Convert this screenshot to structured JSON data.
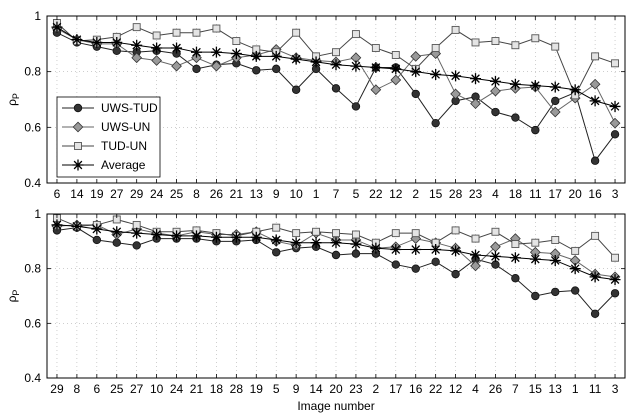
{
  "chart_data": [
    {
      "type": "line",
      "ylabel": "ρP",
      "xlabel": "",
      "ylim": [
        0.4,
        1.0
      ],
      "yticks": [
        "0.4",
        "0.6",
        "0.8",
        "1"
      ],
      "grid": true,
      "legend_position": "bottom-left",
      "categories": [
        "6",
        "14",
        "19",
        "27",
        "29",
        "24",
        "25",
        "8",
        "26",
        "21",
        "13",
        "9",
        "10",
        "1",
        "7",
        "5",
        "22",
        "12",
        "2",
        "15",
        "28",
        "23",
        "4",
        "18",
        "11",
        "17",
        "20",
        "16",
        "3"
      ],
      "series": [
        {
          "name": "UWS-TUD",
          "marker": "circle",
          "values": [
            0.94,
            0.905,
            0.89,
            0.875,
            0.87,
            0.875,
            0.865,
            0.81,
            0.825,
            0.83,
            0.805,
            0.81,
            0.735,
            0.81,
            0.74,
            0.675,
            0.815,
            0.815,
            0.72,
            0.615,
            0.695,
            0.71,
            0.655,
            0.635,
            0.59,
            0.695,
            0.725,
            0.48,
            0.575
          ]
        },
        {
          "name": "UWS-UN",
          "marker": "diamond",
          "values": [
            0.955,
            0.915,
            0.9,
            0.9,
            0.85,
            0.84,
            0.82,
            0.85,
            0.82,
            0.85,
            0.86,
            0.88,
            0.85,
            0.84,
            0.835,
            0.85,
            0.735,
            0.77,
            0.855,
            0.865,
            0.72,
            0.685,
            0.73,
            0.74,
            0.745,
            0.655,
            0.705,
            0.755,
            0.615
          ]
        },
        {
          "name": "TUD-UN",
          "marker": "square",
          "values": [
            0.975,
            0.91,
            0.915,
            0.925,
            0.96,
            0.93,
            0.94,
            0.94,
            0.955,
            0.91,
            0.88,
            0.87,
            0.94,
            0.855,
            0.87,
            0.935,
            0.885,
            0.86,
            0.81,
            0.885,
            0.95,
            0.905,
            0.91,
            0.895,
            0.92,
            0.89,
            0.715,
            0.855,
            0.83
          ]
        },
        {
          "name": "Average",
          "marker": "asterisk",
          "values": [
            0.96,
            0.915,
            0.905,
            0.905,
            0.895,
            0.885,
            0.885,
            0.87,
            0.87,
            0.865,
            0.855,
            0.855,
            0.845,
            0.835,
            0.825,
            0.82,
            0.815,
            0.81,
            0.8,
            0.79,
            0.785,
            0.775,
            0.765,
            0.755,
            0.75,
            0.745,
            0.735,
            0.695,
            0.675
          ]
        }
      ]
    },
    {
      "type": "line",
      "ylabel": "ρP",
      "xlabel": "Image number",
      "ylim": [
        0.4,
        1.0
      ],
      "yticks": [
        "0.4",
        "0.6",
        "0.8",
        "1"
      ],
      "grid": true,
      "categories": [
        "29",
        "8",
        "6",
        "25",
        "27",
        "10",
        "24",
        "21",
        "18",
        "28",
        "19",
        "5",
        "9",
        "14",
        "20",
        "23",
        "2",
        "17",
        "16",
        "22",
        "12",
        "4",
        "26",
        "7",
        "15",
        "13",
        "1",
        "11",
        "3"
      ],
      "series": [
        {
          "name": "UWS-TUD",
          "marker": "circle",
          "values": [
            0.94,
            0.95,
            0.905,
            0.895,
            0.885,
            0.91,
            0.91,
            0.91,
            0.9,
            0.9,
            0.905,
            0.86,
            0.875,
            0.88,
            0.85,
            0.855,
            0.855,
            0.815,
            0.8,
            0.825,
            0.78,
            0.835,
            0.815,
            0.765,
            0.7,
            0.715,
            0.72,
            0.635,
            0.71
          ]
        },
        {
          "name": "UWS-UN",
          "marker": "diamond",
          "values": [
            0.955,
            0.96,
            0.96,
            0.925,
            0.945,
            0.93,
            0.92,
            0.935,
            0.925,
            0.925,
            0.935,
            0.9,
            0.885,
            0.93,
            0.905,
            0.905,
            0.875,
            0.88,
            0.91,
            0.895,
            0.875,
            0.81,
            0.88,
            0.91,
            0.86,
            0.855,
            0.83,
            0.78,
            0.77
          ]
        },
        {
          "name": "TUD-UN",
          "marker": "square",
          "values": [
            0.985,
            0.955,
            0.96,
            0.98,
            0.96,
            0.935,
            0.935,
            0.94,
            0.93,
            0.92,
            0.935,
            0.95,
            0.93,
            0.935,
            0.93,
            0.925,
            0.895,
            0.93,
            0.93,
            0.895,
            0.94,
            0.91,
            0.935,
            0.89,
            0.895,
            0.905,
            0.865,
            0.92,
            0.84
          ]
        },
        {
          "name": "Average",
          "marker": "asterisk",
          "values": [
            0.96,
            0.955,
            0.945,
            0.935,
            0.93,
            0.925,
            0.92,
            0.92,
            0.915,
            0.915,
            0.915,
            0.905,
            0.895,
            0.895,
            0.895,
            0.89,
            0.875,
            0.87,
            0.87,
            0.87,
            0.865,
            0.85,
            0.845,
            0.84,
            0.835,
            0.83,
            0.8,
            0.77,
            0.76
          ]
        }
      ]
    }
  ]
}
